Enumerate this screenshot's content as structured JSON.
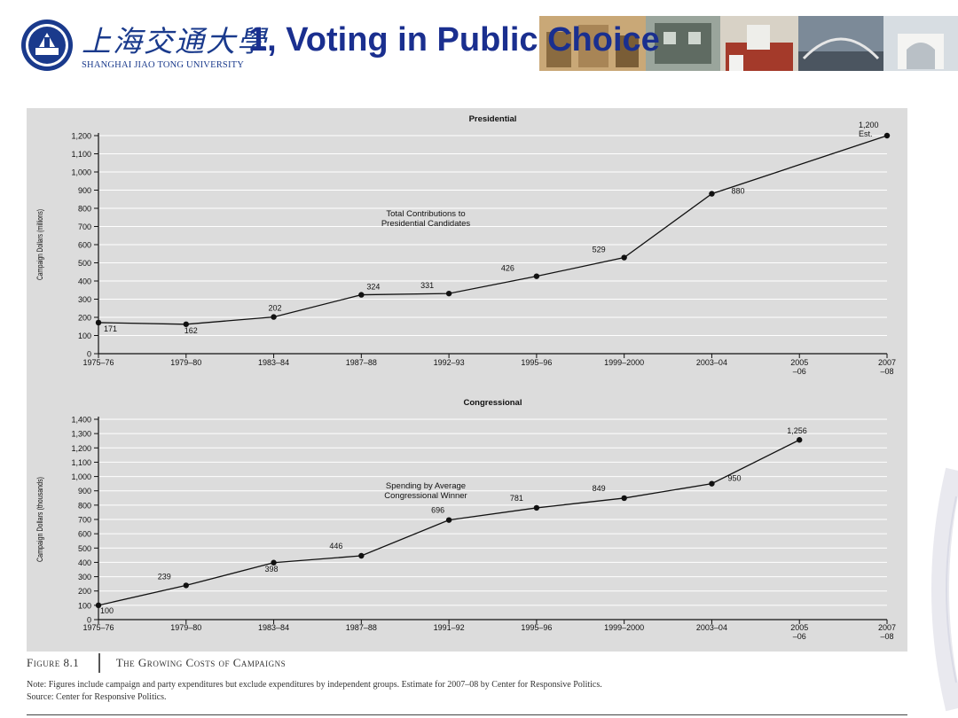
{
  "header": {
    "title": "1,  Voting in Public Choice",
    "school_name_cn": "上海交通大學",
    "school_name_en": "SHANGHAI JIAO TONG UNIVERSITY"
  },
  "chart_data": [
    {
      "type": "line",
      "title": "Presidential",
      "ylabel": "Campaign Dollars (millions)",
      "annotation": [
        "Total Contributions to",
        "Presidential Candidates"
      ],
      "categories": [
        "1975–76",
        "1979–80",
        "1983–84",
        "1987–88",
        "1992–93",
        "1995–96",
        "1999–2000",
        "2003–04",
        [
          "2005",
          "–06"
        ],
        [
          "2007",
          "–08"
        ]
      ],
      "yticks": [
        "0",
        "100",
        "200",
        "300",
        "400",
        "500",
        "600",
        "700",
        "800",
        "900",
        "1,000",
        "1,100",
        "1,200"
      ],
      "ylim": [
        0,
        1200
      ],
      "points": [
        {
          "x": 0,
          "y": 171,
          "label": "171"
        },
        {
          "x": 1,
          "y": 162,
          "label": "162"
        },
        {
          "x": 2,
          "y": 202,
          "label": "202"
        },
        {
          "x": 3,
          "y": 324,
          "label": "324"
        },
        {
          "x": 4,
          "y": 331,
          "label": "331"
        },
        {
          "x": 5,
          "y": 426,
          "label": "426"
        },
        {
          "x": 6,
          "y": 529,
          "label": "529"
        },
        {
          "x": 7,
          "y": 880,
          "label": "880"
        },
        {
          "x": 9,
          "y": 1200,
          "label": [
            "1,200",
            "Est."
          ]
        }
      ],
      "grid": true
    },
    {
      "type": "line",
      "title": "Congressional",
      "ylabel": "Campaign Dollars (thousands)",
      "annotation": [
        "Spending by Average",
        "Congressional Winner"
      ],
      "categories": [
        "1975–76",
        "1979–80",
        "1983–84",
        "1987–88",
        "1991–92",
        "1995–96",
        "1999–2000",
        "2003–04",
        [
          "2005",
          "–06"
        ],
        [
          "2007",
          "–08"
        ]
      ],
      "yticks": [
        "0",
        "100",
        "200",
        "300",
        "400",
        "500",
        "600",
        "700",
        "800",
        "900",
        "1,000",
        "1,100",
        "1,200",
        "1,300",
        "1,400"
      ],
      "ylim": [
        0,
        1400
      ],
      "points": [
        {
          "x": 0,
          "y": 100,
          "label": "100"
        },
        {
          "x": 1,
          "y": 239,
          "label": "239"
        },
        {
          "x": 2,
          "y": 398,
          "label": "398"
        },
        {
          "x": 3,
          "y": 446,
          "label": "446"
        },
        {
          "x": 4,
          "y": 696,
          "label": "696"
        },
        {
          "x": 5,
          "y": 781,
          "label": "781"
        },
        {
          "x": 6,
          "y": 849,
          "label": "849"
        },
        {
          "x": 7,
          "y": 950,
          "label": "950"
        },
        {
          "x": 8,
          "y": 1256,
          "label": "1,256"
        }
      ],
      "grid": true
    }
  ],
  "caption": {
    "figure_number": "Figure 8.1",
    "figure_title": "The Growing Costs of Campaigns",
    "note": "Note: Figures include campaign and party expenditures but exclude expenditures by independent groups. Estimate for 2007–08 by Center for Responsive Politics.",
    "source": "Source: Center for Responsive Politics."
  },
  "colors": {
    "title_blue": "#1a2f8f",
    "chart_bg": "#dcdcdc",
    "line": "#111111"
  }
}
